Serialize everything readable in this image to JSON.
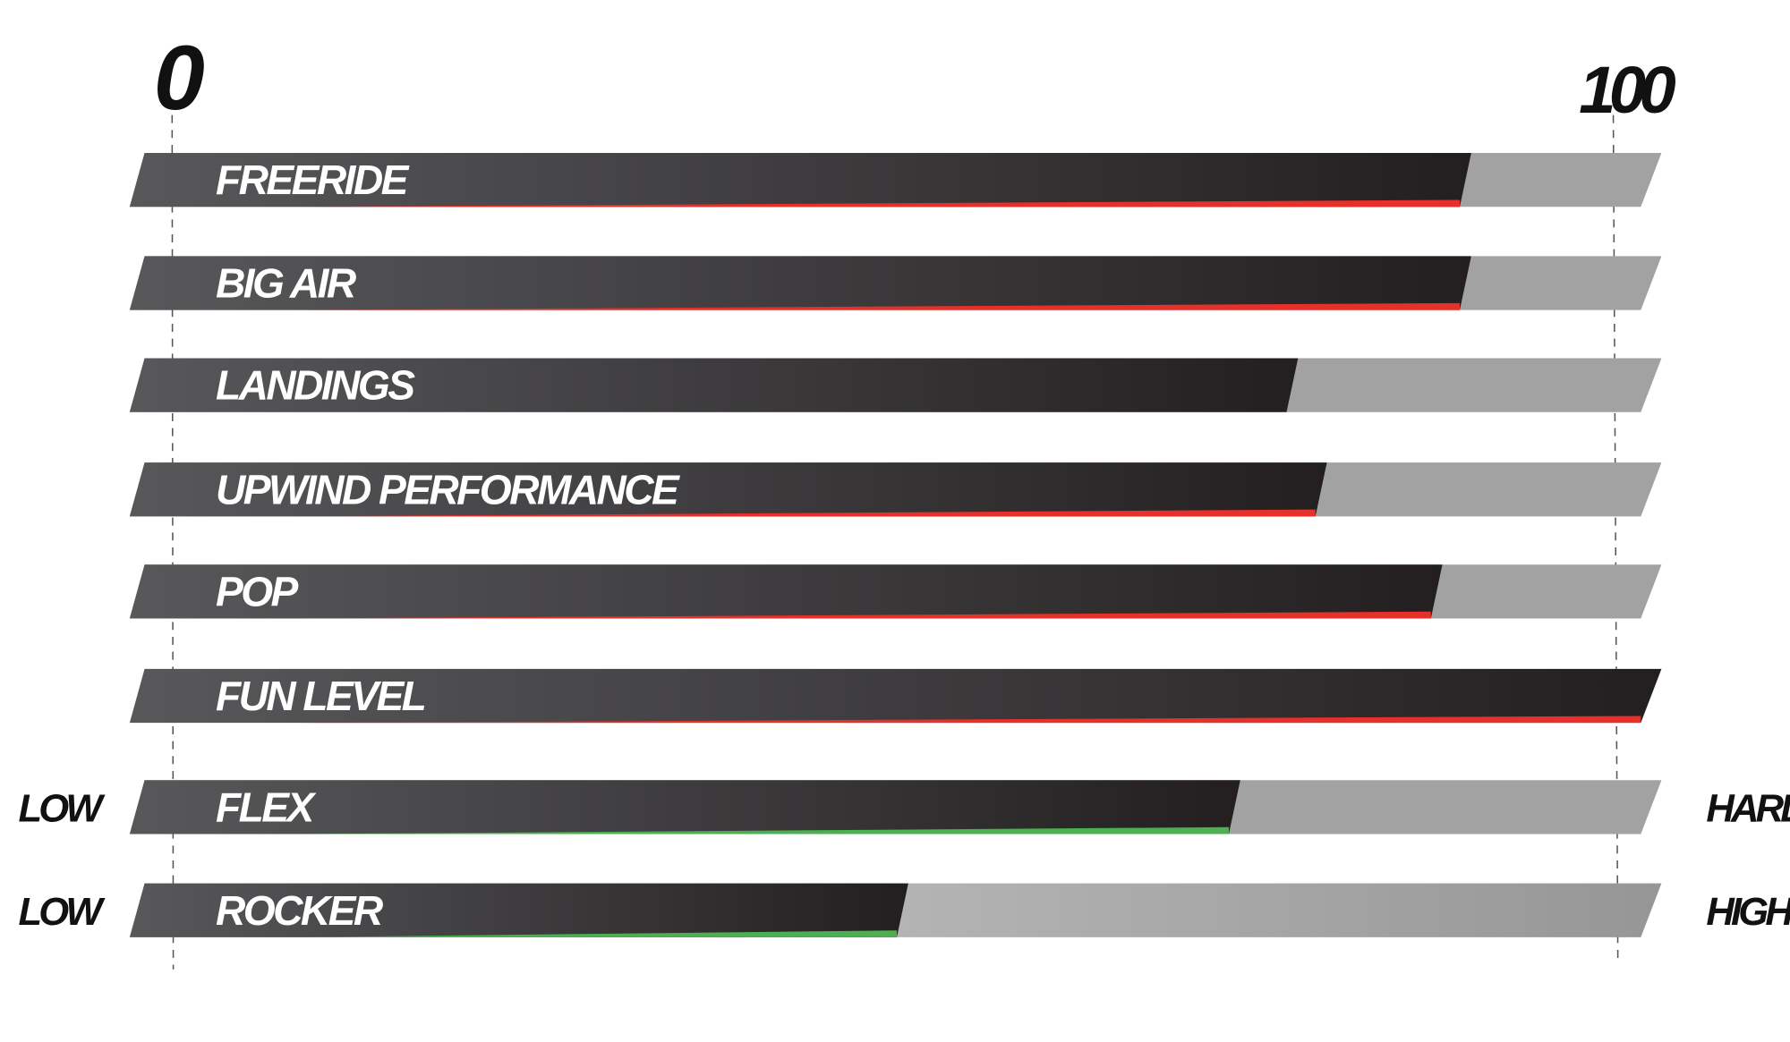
{
  "chart_data": {
    "type": "bar",
    "orientation": "horizontal",
    "xlim": [
      0,
      100
    ],
    "tick_labels": [
      "0",
      "100"
    ],
    "grid": false,
    "categories": [
      "FREERIDE",
      "BIG AIR",
      "LANDINGS",
      "UPWIND PERFORMANCE",
      "POP",
      "FUN LEVEL",
      "FLEX",
      "ROCKER"
    ],
    "values": [
      90,
      90,
      78,
      80,
      88,
      100,
      74,
      51
    ],
    "accent_colors": [
      "#e8302a",
      "#e8302a",
      "none",
      "#e8302a",
      "#e8302a",
      "#e8302a",
      "#4caf50",
      "#4caf50"
    ],
    "scale_labels": [
      {
        "category": "FLEX",
        "low": "LOW",
        "high": "HARD"
      },
      {
        "category": "ROCKER",
        "low": "LOW",
        "high": "HIGH"
      }
    ],
    "colors": {
      "bar_fill_dark": "#231f20",
      "bar_fill_light": "#555558",
      "track": "#9c9c9c",
      "red": "#e8302a",
      "green": "#4caf50"
    }
  }
}
